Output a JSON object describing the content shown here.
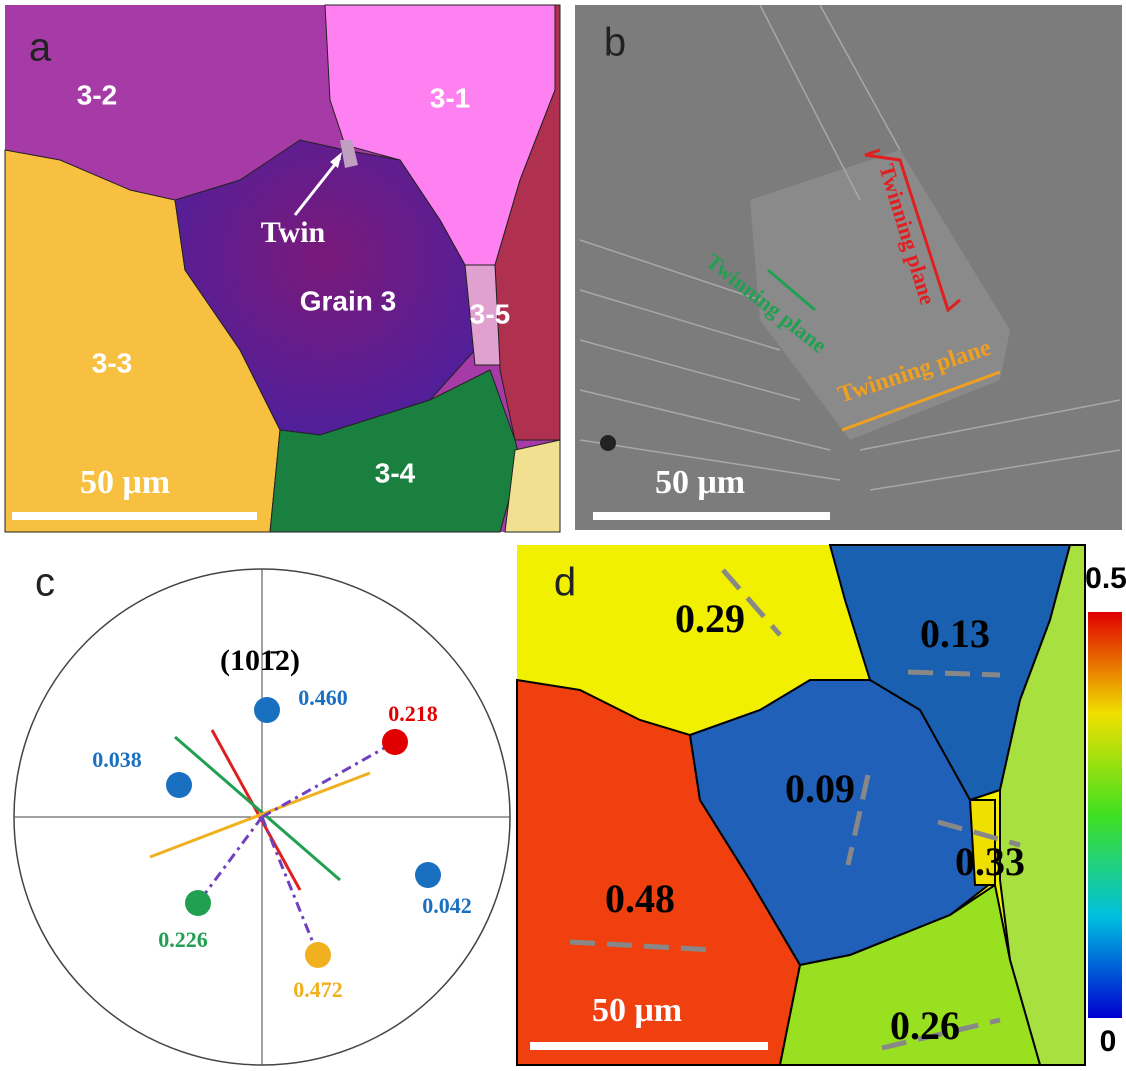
{
  "panel_a": {
    "label": "a",
    "grain_3_2": "3-2",
    "grain_3_1": "3-1",
    "twin": "Twin",
    "grain_3": "Grain 3",
    "grain_3_5": "3-5",
    "grain_3_3": "3-3",
    "grain_3_4": "3-4",
    "scale_bar": "50 μm"
  },
  "panel_b": {
    "label": "b",
    "plane_red": "Twinning plane",
    "plane_green": "Twinning plane",
    "plane_orange": "Twinning plane",
    "scale_bar": "50 μm"
  },
  "panel_c": {
    "label": "c",
    "plane": "(101̄2)",
    "points": [
      "0.460",
      "0.218",
      "0.038",
      "0.042",
      "0.226",
      "0.472"
    ]
  },
  "panel_d": {
    "label": "d",
    "values": [
      "0.29",
      "0.13",
      "0.09",
      "0.33",
      "0.48",
      "0.26"
    ],
    "scale_bar": "50 μm",
    "colorbar_max": "0.5",
    "colorbar_min": "0"
  }
}
